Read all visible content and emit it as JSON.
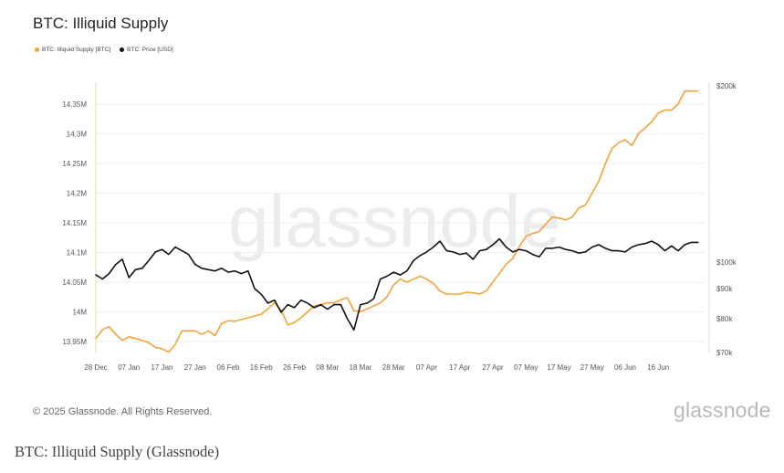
{
  "header": {
    "title": "BTC: Illiquid Supply"
  },
  "footer": {
    "copyright": "© 2025 Glassnode. All Rights Reserved.",
    "brand": "glassnode",
    "watermark": "glassnode"
  },
  "caption": "BTC: Illiquid Supply (Glassnode)",
  "chart_data": {
    "type": "line",
    "title": "BTC: Illiquid Supply",
    "legend_position": "top-left",
    "grid": true,
    "x_ticks": [
      "28 Dec",
      "07 Jan",
      "17 Jan",
      "27 Jan",
      "06 Feb",
      "16 Feb",
      "26 Feb",
      "08 Mar",
      "18 Mar",
      "28 Mar",
      "07 Apr",
      "17 Apr",
      "27 Apr",
      "07 May",
      "17 May",
      "27 May",
      "06 Jun",
      "16 Jun"
    ],
    "y_left": {
      "ticks": [
        "13.95M",
        "14M",
        "14.05M",
        "14.1M",
        "14.15M",
        "14.2M",
        "14.25M",
        "14.3M",
        "14.35M"
      ],
      "range": [
        13.93,
        14.375
      ]
    },
    "y_right": {
      "ticks": [
        "$70k",
        "$80k",
        "$90k",
        "$100k",
        "$200k"
      ],
      "scale": "log",
      "range": [
        70000,
        200000
      ]
    },
    "series": [
      {
        "name": "BTC: Illiquid Supply [BTC]",
        "color": "#f2a33a",
        "axis": "left",
        "x_days": [
          0,
          2,
          4,
          6,
          8,
          10,
          12,
          14,
          16,
          18,
          20,
          22,
          24,
          26,
          28,
          30,
          32,
          34,
          36,
          38,
          40,
          42,
          44,
          46,
          48,
          50,
          52,
          54,
          56,
          58,
          60,
          62,
          64,
          66,
          68,
          70,
          72,
          74,
          76,
          78,
          80,
          82,
          84,
          86,
          88,
          90,
          92,
          94,
          96,
          98,
          100,
          102,
          104,
          106,
          108,
          110,
          112,
          114,
          116,
          118,
          120,
          122,
          124,
          126,
          128,
          130,
          132,
          134,
          136,
          138,
          140,
          142,
          144,
          146,
          148,
          150,
          152,
          154,
          156,
          158,
          160,
          162,
          164,
          166,
          168,
          170,
          172,
          174,
          176,
          178,
          180,
          182
        ],
        "values": [
          13.955,
          13.97,
          13.975,
          13.962,
          13.952,
          13.958,
          13.955,
          13.952,
          13.948,
          13.94,
          13.938,
          13.932,
          13.945,
          13.968,
          13.968,
          13.968,
          13.962,
          13.968,
          13.96,
          13.98,
          13.985,
          13.984,
          13.987,
          13.99,
          13.993,
          13.996,
          14.005,
          14.015,
          14.003,
          13.978,
          13.982,
          13.99,
          14.0,
          14.01,
          14.012,
          14.015,
          14.015,
          14.02,
          14.024,
          14.002,
          14.0,
          14.005,
          14.01,
          14.015,
          14.025,
          14.045,
          14.055,
          14.05,
          14.055,
          14.06,
          14.055,
          14.048,
          14.035,
          14.03,
          14.03,
          14.03,
          14.033,
          14.032,
          14.03,
          14.035,
          14.05,
          14.065,
          14.08,
          14.09,
          14.11,
          14.127,
          14.132,
          14.135,
          14.148,
          14.16,
          14.158,
          14.155,
          14.16,
          14.175,
          14.18,
          14.2,
          14.22,
          14.25,
          14.275,
          14.285,
          14.29,
          14.28,
          14.3,
          14.31,
          14.32,
          14.335,
          14.34,
          14.34,
          14.35,
          14.372,
          14.372,
          14.372
        ]
      },
      {
        "name": "BTC: Price [USD]",
        "color": "#111111",
        "axis": "right",
        "x_days": [
          0,
          2,
          4,
          6,
          8,
          10,
          12,
          14,
          16,
          18,
          20,
          22,
          24,
          26,
          28,
          30,
          32,
          34,
          36,
          38,
          40,
          42,
          44,
          46,
          48,
          50,
          52,
          54,
          56,
          58,
          60,
          62,
          64,
          66,
          68,
          70,
          72,
          74,
          76,
          78,
          80,
          82,
          84,
          86,
          88,
          90,
          92,
          94,
          96,
          98,
          100,
          102,
          104,
          106,
          108,
          110,
          112,
          114,
          116,
          118,
          120,
          122,
          124,
          126,
          128,
          130,
          132,
          134,
          136,
          138,
          140,
          142,
          144,
          146,
          148,
          150,
          152,
          154,
          156,
          158,
          160,
          162,
          164,
          166,
          168,
          170,
          172,
          174,
          176,
          178,
          180,
          182
        ],
        "values": [
          95000,
          93500,
          95500,
          99000,
          101000,
          94000,
          97000,
          97500,
          100500,
          104000,
          105000,
          103000,
          106000,
          104500,
          103000,
          99000,
          97500,
          97000,
          96500,
          97500,
          96000,
          96500,
          95500,
          96500,
          90000,
          88000,
          85000,
          86000,
          82000,
          84500,
          83500,
          86000,
          85000,
          83500,
          84500,
          83000,
          84500,
          84500,
          80000,
          76500,
          84500,
          85000,
          86500,
          93500,
          94500,
          96000,
          95000,
          96500,
          100500,
          102500,
          104000,
          106000,
          108500,
          104500,
          104000,
          103000,
          103500,
          101000,
          104500,
          105000,
          107000,
          109500,
          106000,
          104000,
          105000,
          104500,
          103000,
          102000,
          105500,
          105500,
          106000,
          105000,
          104500,
          103500,
          104000,
          106000,
          107000,
          105500,
          104500,
          104500,
          104000,
          106000,
          107000,
          107500,
          108500,
          107000,
          104500,
          106500,
          104500,
          107000,
          108000,
          108000
        ]
      }
    ]
  }
}
